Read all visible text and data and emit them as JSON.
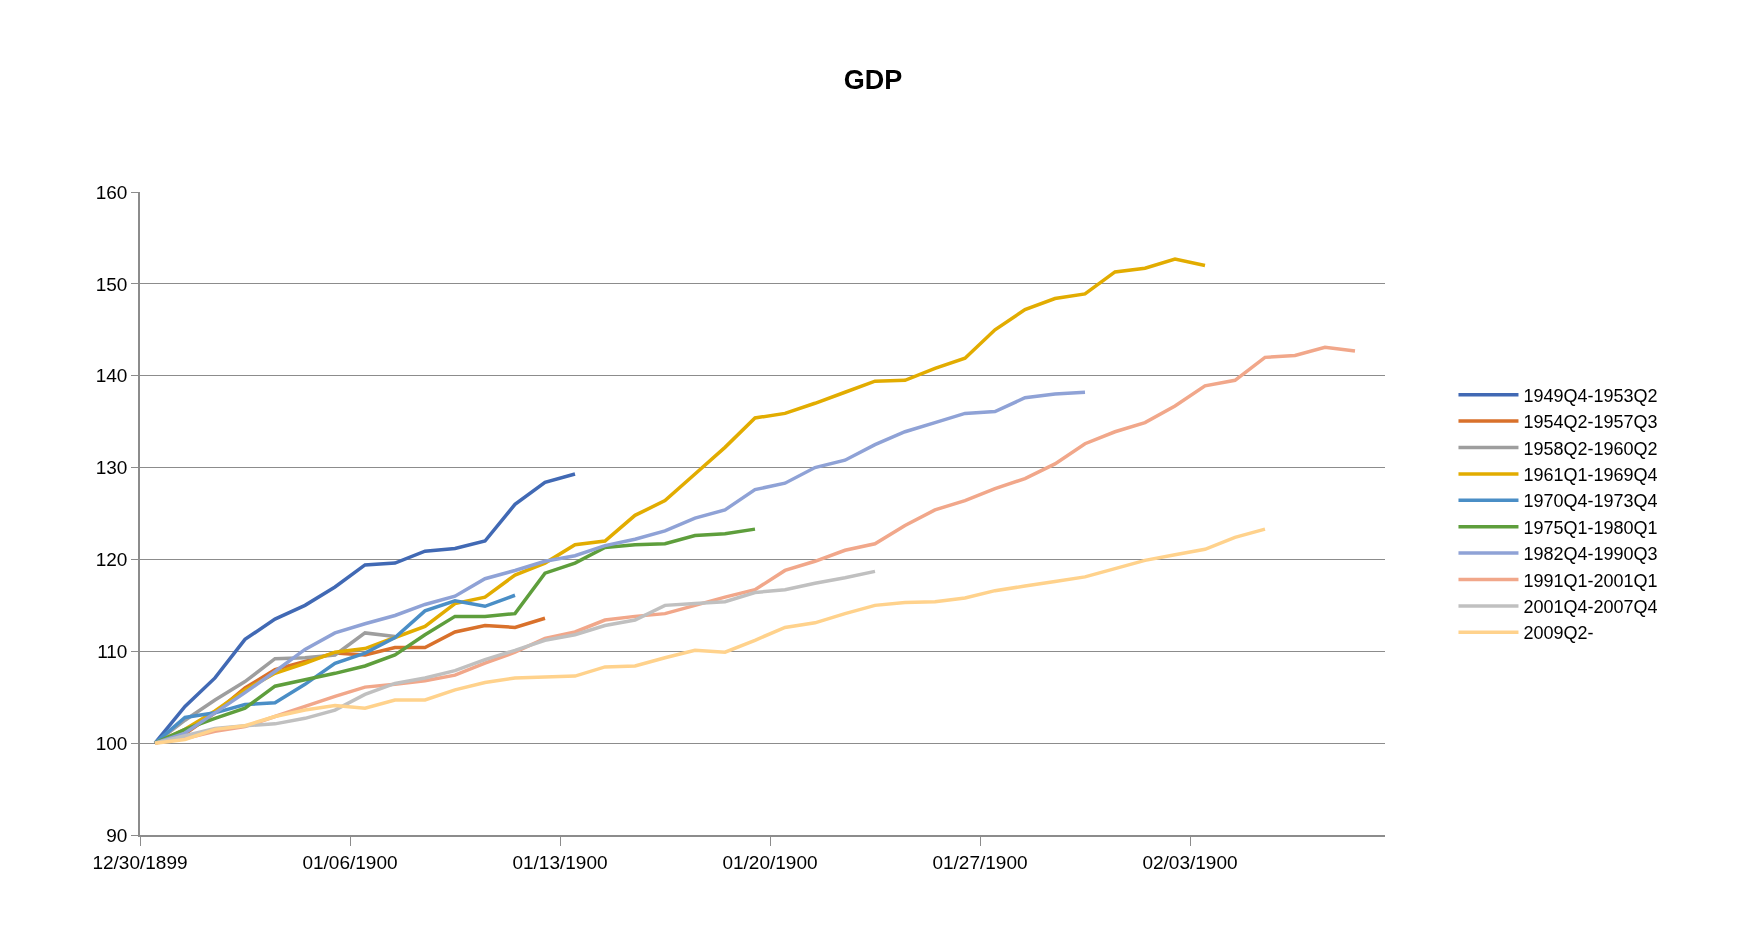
{
  "chart_data": {
    "type": "line",
    "title": "GDP",
    "xlim": [
      "1899-12-30",
      "1900-02-09T12:00"
    ],
    "xticks": [
      {
        "value": "1899-12-30",
        "label": "12/30/1899"
      },
      {
        "value": "1900-01-06",
        "label": "01/06/1900"
      },
      {
        "value": "1900-01-13",
        "label": "01/13/1900"
      },
      {
        "value": "1900-01-20",
        "label": "01/20/1900"
      },
      {
        "value": "1900-01-27",
        "label": "01/27/1900"
      },
      {
        "value": "1900-02-03",
        "label": "02/03/1900"
      }
    ],
    "ylim": [
      90,
      160
    ],
    "yticks": [
      90,
      100,
      110,
      120,
      130,
      140,
      150,
      160
    ],
    "grid": "y",
    "legend": "right",
    "series": [
      {
        "name": "1949Q4-1953Q2",
        "color": "#4169b4",
        "x": [
          "1899-12-30T12:00",
          "1899-12-31T12:00",
          "1900-01-01T12:00",
          "1900-01-02T12:00",
          "1900-01-03T12:00",
          "1900-01-04T12:00",
          "1900-01-05T12:00",
          "1900-01-06T12:00",
          "1900-01-07T12:00",
          "1900-01-08T12:00",
          "1900-01-09T12:00",
          "1900-01-10T12:00",
          "1900-01-11T12:00",
          "1900-01-12T12:00",
          "1900-01-13T12:00"
        ],
        "values": [
          100,
          104.0,
          107.1,
          111.3,
          113.5,
          115.0,
          117.0,
          119.4,
          119.6,
          120.9,
          121.2,
          122.0,
          126.0,
          128.4,
          129.3
        ]
      },
      {
        "name": "1954Q2-1957Q3",
        "color": "#d9712b",
        "x": [
          "1899-12-30T12:00",
          "1899-12-31T12:00",
          "1900-01-01T12:00",
          "1900-01-02T12:00",
          "1900-01-03T12:00",
          "1900-01-04T12:00",
          "1900-01-05T12:00",
          "1900-01-06T12:00",
          "1900-01-07T12:00",
          "1900-01-08T12:00",
          "1900-01-09T12:00",
          "1900-01-10T12:00",
          "1900-01-11T12:00",
          "1900-01-12T12:00"
        ],
        "values": [
          100,
          101.0,
          103.3,
          106.0,
          108.0,
          108.9,
          109.8,
          109.6,
          110.4,
          110.4,
          112.1,
          112.8,
          112.6,
          113.6
        ]
      },
      {
        "name": "1958Q2-1960Q2",
        "color": "#9e9e9e",
        "x": [
          "1899-12-30T12:00",
          "1899-12-31T12:00",
          "1900-01-01T12:00",
          "1900-01-02T12:00",
          "1900-01-03T12:00",
          "1900-01-04T12:00",
          "1900-01-05T12:00",
          "1900-01-06T12:00",
          "1900-01-07T12:00"
        ],
        "values": [
          100,
          102.5,
          104.7,
          106.7,
          109.2,
          109.3,
          109.6,
          112.0,
          111.6
        ]
      },
      {
        "name": "1961Q1-1969Q4",
        "color": "#e2ac00",
        "x": [
          "1899-12-30T12:00",
          "1899-12-31T12:00",
          "1900-01-01T12:00",
          "1900-01-02T12:00",
          "1900-01-03T12:00",
          "1900-01-04T12:00",
          "1900-01-05T12:00",
          "1900-01-06T12:00",
          "1900-01-07T12:00",
          "1900-01-08T12:00",
          "1900-01-09T12:00",
          "1900-01-10T12:00",
          "1900-01-11T12:00",
          "1900-01-12T12:00",
          "1900-01-13T12:00",
          "1900-01-14T12:00",
          "1900-01-15T12:00",
          "1900-01-16T12:00",
          "1900-01-17T12:00",
          "1900-01-18T12:00",
          "1900-01-19T12:00",
          "1900-01-20T12:00",
          "1900-01-21T12:00",
          "1900-01-22T12:00",
          "1900-01-23T12:00",
          "1900-01-24T12:00",
          "1900-01-25T12:00",
          "1900-01-26T12:00",
          "1900-01-27T12:00",
          "1900-01-28T12:00",
          "1900-01-29T12:00",
          "1900-01-30T12:00",
          "1900-01-31T12:00",
          "1900-02-01T12:00",
          "1900-02-02T12:00",
          "1900-02-03T12:00"
        ],
        "values": [
          100,
          101.5,
          103.5,
          105.8,
          107.6,
          108.7,
          109.9,
          110.3,
          111.5,
          112.7,
          115.2,
          115.9,
          118.3,
          119.6,
          121.6,
          122.0,
          124.8,
          126.4,
          129.3,
          132.2,
          135.4,
          135.9,
          137.0,
          138.2,
          139.4,
          139.5,
          140.8,
          141.9,
          145.0,
          147.2,
          148.4,
          148.9,
          151.3,
          151.7,
          152.7,
          152.0
        ]
      },
      {
        "name": "1970Q4-1973Q4",
        "color": "#4a8ec6",
        "x": [
          "1899-12-30T12:00",
          "1899-12-31T12:00",
          "1900-01-01T12:00",
          "1900-01-02T12:00",
          "1900-01-03T12:00",
          "1900-01-04T12:00",
          "1900-01-05T12:00",
          "1900-01-06T12:00",
          "1900-01-07T12:00",
          "1900-01-08T12:00",
          "1900-01-09T12:00",
          "1900-01-10T12:00",
          "1900-01-11T12:00"
        ],
        "values": [
          100,
          102.8,
          103.3,
          104.2,
          104.4,
          106.4,
          108.7,
          109.8,
          111.5,
          114.4,
          115.5,
          114.9,
          116.1
        ]
      },
      {
        "name": "1975Q1-1980Q1",
        "color": "#5e9e3c",
        "x": [
          "1899-12-30T12:00",
          "1899-12-31T12:00",
          "1900-01-01T12:00",
          "1900-01-02T12:00",
          "1900-01-03T12:00",
          "1900-01-04T12:00",
          "1900-01-05T12:00",
          "1900-01-06T12:00",
          "1900-01-07T12:00",
          "1900-01-08T12:00",
          "1900-01-09T12:00",
          "1900-01-10T12:00",
          "1900-01-11T12:00",
          "1900-01-12T12:00",
          "1900-01-13T12:00",
          "1900-01-14T12:00",
          "1900-01-15T12:00",
          "1900-01-16T12:00",
          "1900-01-17T12:00",
          "1900-01-18T12:00",
          "1900-01-19T12:00"
        ],
        "values": [
          100,
          101.5,
          102.7,
          103.8,
          106.2,
          106.9,
          107.6,
          108.4,
          109.6,
          111.8,
          113.8,
          113.8,
          114.1,
          118.5,
          119.6,
          121.3,
          121.6,
          121.7,
          122.6,
          122.8,
          123.3
        ]
      },
      {
        "name": "1982Q4-1990Q3",
        "color": "#8fa2d6",
        "x": [
          "1899-12-30T12:00",
          "1899-12-31T12:00",
          "1900-01-01T12:00",
          "1900-01-02T12:00",
          "1900-01-03T12:00",
          "1900-01-04T12:00",
          "1900-01-05T12:00",
          "1900-01-06T12:00",
          "1900-01-07T12:00",
          "1900-01-08T12:00",
          "1900-01-09T12:00",
          "1900-01-10T12:00",
          "1900-01-11T12:00",
          "1900-01-12T12:00",
          "1900-01-13T12:00",
          "1900-01-14T12:00",
          "1900-01-15T12:00",
          "1900-01-16T12:00",
          "1900-01-17T12:00",
          "1900-01-18T12:00",
          "1900-01-19T12:00",
          "1900-01-20T12:00",
          "1900-01-21T12:00",
          "1900-01-22T12:00",
          "1900-01-23T12:00",
          "1900-01-24T12:00",
          "1900-01-25T12:00",
          "1900-01-26T12:00",
          "1900-01-27T12:00",
          "1900-01-28T12:00",
          "1900-01-29T12:00",
          "1900-01-30T12:00"
        ],
        "values": [
          100,
          101.1,
          103.3,
          105.5,
          107.8,
          110.2,
          112.0,
          113.0,
          113.9,
          115.1,
          116.0,
          117.9,
          118.8,
          119.8,
          120.4,
          121.5,
          122.2,
          123.1,
          124.5,
          125.4,
          127.6,
          128.3,
          130.0,
          130.8,
          132.5,
          133.9,
          134.9,
          135.9,
          136.1,
          137.6,
          138.0,
          138.2
        ]
      },
      {
        "name": "1991Q1-2001Q1",
        "color": "#f1a78a",
        "x": [
          "1899-12-30T12:00",
          "1899-12-31T12:00",
          "1900-01-01T12:00",
          "1900-01-02T12:00",
          "1900-01-03T12:00",
          "1900-01-04T12:00",
          "1900-01-05T12:00",
          "1900-01-06T12:00",
          "1900-01-07T12:00",
          "1900-01-08T12:00",
          "1900-01-09T12:00",
          "1900-01-10T12:00",
          "1900-01-11T12:00",
          "1900-01-12T12:00",
          "1900-01-13T12:00",
          "1900-01-14T12:00",
          "1900-01-15T12:00",
          "1900-01-16T12:00",
          "1900-01-17T12:00",
          "1900-01-18T12:00",
          "1900-01-19T12:00",
          "1900-01-20T12:00",
          "1900-01-21T12:00",
          "1900-01-22T12:00",
          "1900-01-23T12:00",
          "1900-01-24T12:00",
          "1900-01-25T12:00",
          "1900-01-26T12:00",
          "1900-01-27T12:00",
          "1900-01-28T12:00",
          "1900-01-29T12:00",
          "1900-01-30T12:00",
          "1900-01-31T12:00",
          "1900-02-01T12:00",
          "1900-02-02T12:00",
          "1900-02-03T12:00",
          "1900-02-04T12:00",
          "1900-02-05T12:00",
          "1900-02-06T12:00",
          "1900-02-07T12:00",
          "1900-02-08T12:00"
        ],
        "values": [
          100,
          100.5,
          101.3,
          101.8,
          102.9,
          104.0,
          105.1,
          106.1,
          106.4,
          106.8,
          107.4,
          108.7,
          109.9,
          111.4,
          112.1,
          113.4,
          113.8,
          114.1,
          115.0,
          115.9,
          116.7,
          118.8,
          119.8,
          121.0,
          121.7,
          123.7,
          125.4,
          126.4,
          127.7,
          128.8,
          130.4,
          132.6,
          133.9,
          134.9,
          136.7,
          138.9,
          139.5,
          142.0,
          142.2,
          143.1,
          142.7
        ]
      },
      {
        "name": "2001Q4-2007Q4",
        "color": "#c0c0c0",
        "x": [
          "1899-12-30T12:00",
          "1899-12-31T12:00",
          "1900-01-01T12:00",
          "1900-01-02T12:00",
          "1900-01-03T12:00",
          "1900-01-04T12:00",
          "1900-01-05T12:00",
          "1900-01-06T12:00",
          "1900-01-07T12:00",
          "1900-01-08T12:00",
          "1900-01-09T12:00",
          "1900-01-10T12:00",
          "1900-01-11T12:00",
          "1900-01-12T12:00",
          "1900-01-13T12:00",
          "1900-01-14T12:00",
          "1900-01-15T12:00",
          "1900-01-16T12:00",
          "1900-01-17T12:00",
          "1900-01-18T12:00",
          "1900-01-19T12:00",
          "1900-01-20T12:00",
          "1900-01-21T12:00",
          "1900-01-22T12:00",
          "1900-01-23T12:00"
        ],
        "values": [
          100,
          100.8,
          101.6,
          101.9,
          102.1,
          102.7,
          103.6,
          105.3,
          106.5,
          107.1,
          107.9,
          109.1,
          110.1,
          111.2,
          111.8,
          112.8,
          113.4,
          115.0,
          115.2,
          115.4,
          116.4,
          116.7,
          117.4,
          118.0,
          118.7
        ]
      },
      {
        "name": "2009Q2-",
        "color": "#ffd28c",
        "x": [
          "1899-12-30T12:00",
          "1899-12-31T12:00",
          "1900-01-01T12:00",
          "1900-01-02T12:00",
          "1900-01-03T12:00",
          "1900-01-04T12:00",
          "1900-01-05T12:00",
          "1900-01-06T12:00",
          "1900-01-07T12:00",
          "1900-01-08T12:00",
          "1900-01-09T12:00",
          "1900-01-10T12:00",
          "1900-01-11T12:00",
          "1900-01-12T12:00",
          "1900-01-13T12:00",
          "1900-01-14T12:00",
          "1900-01-15T12:00",
          "1900-01-16T12:00",
          "1900-01-17T12:00",
          "1900-01-18T12:00",
          "1900-01-19T12:00",
          "1900-01-20T12:00",
          "1900-01-21T12:00",
          "1900-01-22T12:00",
          "1900-01-23T12:00",
          "1900-01-24T12:00",
          "1900-01-25T12:00",
          "1900-01-26T12:00",
          "1900-01-27T12:00",
          "1900-01-28T12:00",
          "1900-01-29T12:00",
          "1900-01-30T12:00",
          "1900-01-31T12:00",
          "1900-02-01T12:00",
          "1900-02-02T12:00",
          "1900-02-03T12:00",
          "1900-02-04T12:00",
          "1900-02-05T12:00"
        ],
        "values": [
          100,
          100.4,
          101.5,
          101.9,
          102.9,
          103.6,
          104.1,
          103.8,
          104.7,
          104.7,
          105.8,
          106.6,
          107.1,
          107.2,
          107.3,
          108.3,
          108.4,
          109.3,
          110.1,
          109.9,
          111.2,
          112.6,
          113.1,
          114.1,
          115.0,
          115.3,
          115.4,
          115.8,
          116.6,
          117.1,
          117.6,
          118.1,
          119.0,
          119.9,
          120.5,
          121.1,
          122.4,
          123.3
        ]
      }
    ]
  }
}
